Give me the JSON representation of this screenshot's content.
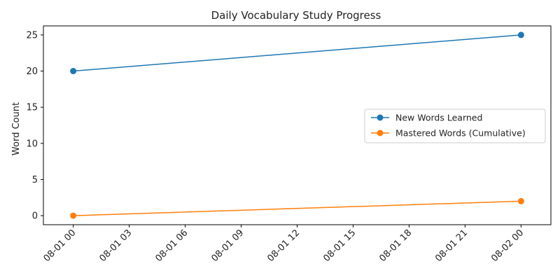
{
  "chart_data": {
    "type": "line",
    "title": "Daily Vocabulary Study Progress",
    "xlabel": "",
    "ylabel": "Word Count",
    "xlim": [
      "2024-07-31T22:24",
      "2024-08-02T01:36"
    ],
    "ylim": [
      -1.25,
      26.25
    ],
    "x_ticks": [
      "08-01 00",
      "08-01 03",
      "08-01 06",
      "08-01 09",
      "08-01 12",
      "08-01 15",
      "08-01 18",
      "08-01 21",
      "08-02 00"
    ],
    "y_ticks": [
      "0",
      "5",
      "10",
      "15",
      "20",
      "25"
    ],
    "grid": false,
    "legend_position": "center-right",
    "x": [
      "2024-08-01T00:00",
      "2024-08-02T00:00"
    ],
    "series": [
      {
        "name": "New Words Learned",
        "values": [
          20,
          25
        ],
        "color": "#1f77b4"
      },
      {
        "name": "Mastered Words (Cumulative)",
        "values": [
          0,
          2
        ],
        "color": "#ff7f0e"
      }
    ]
  }
}
